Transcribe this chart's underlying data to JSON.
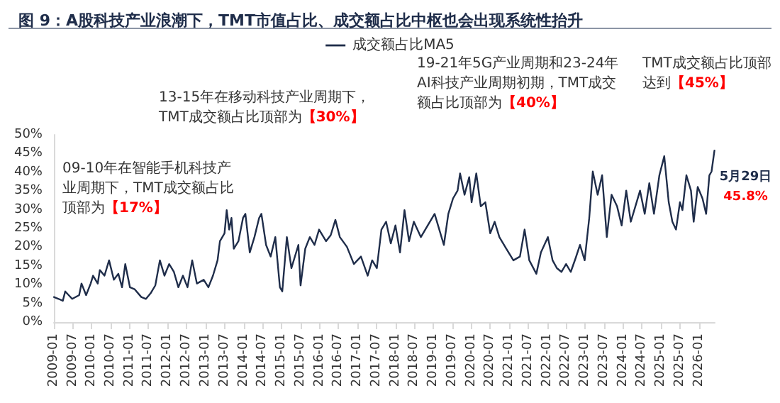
{
  "chart_data": {
    "type": "line",
    "title": "图 9：A股科技产业浪潮下，TMT市值占比、成交额占比中枢也会出现系统性抬升",
    "x": [
      "2009-01-01",
      "2009-02-15",
      "2009-03-28",
      "2009-04-20",
      "2009-06-26",
      "2009-09-01",
      "2009-09-24",
      "2009-11-07",
      "2009-12-21",
      "2010-01-13",
      "2010-02-27",
      "2010-03-19",
      "2010-05-03",
      "2010-06-16",
      "2010-08-01",
      "2010-09-13",
      "2010-10-19",
      "2010-11-19",
      "2011-01-03",
      "2011-02-16",
      "2011-04-22",
      "2011-06-06",
      "2011-07-21",
      "2011-09-04",
      "2011-10-18",
      "2011-12-01",
      "2012-01-15",
      "2012-03-01",
      "2012-04-13",
      "2012-05-27",
      "2012-07-10",
      "2012-08-24",
      "2012-10-08",
      "2012-12-13",
      "2013-01-27",
      "2013-03-12",
      "2013-04-25",
      "2013-05-18",
      "2013-07-01",
      "2013-07-22",
      "2013-08-15",
      "2013-09-06",
      "2013-09-28",
      "2013-11-12",
      "2013-12-26",
      "2014-01-18",
      "2014-03-01",
      "2014-04-15",
      "2014-05-30",
      "2014-06-21",
      "2014-08-05",
      "2014-09-18",
      "2014-11-02",
      "2014-12-16",
      "2015-01-08",
      "2015-02-21",
      "2015-04-06",
      "2015-06-12",
      "2015-07-03",
      "2015-08-17",
      "2015-09-30",
      "2015-11-14",
      "2015-12-28",
      "2016-03-04",
      "2016-04-18",
      "2016-06-02",
      "2016-07-15",
      "2016-09-21",
      "2016-11-27",
      "2017-02-03",
      "2017-04-09",
      "2017-05-22",
      "2017-07-06",
      "2017-08-19",
      "2017-10-03",
      "2017-11-17",
      "2018-01-01",
      "2018-02-14",
      "2018-03-29",
      "2018-05-12",
      "2018-06-27",
      "2018-09-03",
      "2018-11-07",
      "2019-01-13",
      "2019-02-27",
      "2019-04-12",
      "2019-05-25",
      "2019-07-09",
      "2019-08-22",
      "2019-09-15",
      "2019-10-28",
      "2019-12-12",
      "2020-01-04",
      "2020-02-18",
      "2020-04-01",
      "2020-05-15",
      "2020-07-01",
      "2020-08-13",
      "2020-09-27",
      "2020-12-03",
      "2021-02-09",
      "2021-04-13",
      "2021-05-28",
      "2021-07-12",
      "2021-09-18",
      "2021-11-01",
      "2022-01-07",
      "2022-02-21",
      "2022-04-04",
      "2022-05-18",
      "2022-07-01",
      "2022-08-15",
      "2022-09-30",
      "2022-11-12",
      "2022-12-27",
      "2023-02-09",
      "2023-03-15",
      "2023-05-01",
      "2023-06-13",
      "2023-07-28",
      "2023-09-12",
      "2023-11-04",
      "2023-12-18",
      "2024-01-31",
      "2024-03-15",
      "2024-04-28",
      "2024-06-12",
      "2024-07-27",
      "2024-09-09",
      "2024-10-24",
      "2024-12-15",
      "2025-01-31",
      "2025-03-15",
      "2025-04-19",
      "2025-05-24",
      "2025-07-01",
      "2025-07-25",
      "2025-09-01",
      "2025-10-15",
      "2025-11-10",
      "2025-12-19",
      "2026-02-03",
      "2026-03-10",
      "2026-04-10",
      "2026-05-01",
      "2026-05-29"
    ],
    "series": [
      {
        "name": "成交额占比MA5",
        "color": "#1f2d4a",
        "values": [
          6.7,
          6.2,
          5.7,
          8.2,
          6.2,
          7.2,
          10.3,
          7.2,
          10.3,
          12.4,
          10.3,
          13.9,
          12.4,
          16.5,
          11.3,
          12.9,
          9.3,
          15.5,
          9.3,
          8.8,
          6.7,
          6.2,
          7.7,
          9.8,
          16.5,
          12.4,
          15.5,
          13.4,
          9.3,
          12.4,
          9.3,
          16.5,
          10.3,
          11.3,
          9.3,
          12.4,
          16.5,
          21.6,
          23.7,
          29.9,
          24.7,
          27.8,
          19.6,
          21.6,
          27.8,
          28.9,
          18.6,
          22.7,
          27.8,
          28.9,
          20.6,
          17.5,
          22.7,
          9.3,
          8.2,
          22.7,
          14.4,
          20.6,
          9.8,
          19.6,
          22.7,
          20.6,
          24.7,
          21.6,
          23.2,
          27.3,
          22.7,
          20.1,
          15.5,
          17.5,
          12.4,
          16.5,
          14.4,
          24.7,
          26.8,
          21,
          25.8,
          18.6,
          29.9,
          21.6,
          26.8,
          22.7,
          25.8,
          28.9,
          24.7,
          20.6,
          28.9,
          33,
          35.1,
          39.7,
          34,
          38.7,
          32,
          39.7,
          30.9,
          32,
          23.7,
          26.8,
          22.7,
          19.6,
          16.5,
          17.5,
          24.7,
          16.5,
          12.9,
          18.6,
          22.7,
          16.5,
          14.4,
          13.4,
          15.5,
          13.4,
          17,
          20.6,
          16.5,
          27.8,
          40.2,
          34,
          39.2,
          22.7,
          34,
          30.9,
          25.8,
          35.1,
          26.8,
          30.9,
          35.1,
          28.9,
          37.1,
          28.9,
          39.2,
          44.3,
          32,
          26.8,
          24.7,
          32,
          29.9,
          39.2,
          35.1,
          26.8,
          36.1,
          33,
          28.9,
          39.2,
          40.2,
          45.8
        ]
      }
    ],
    "xlim": [
      "2009-01",
      "2026-06"
    ],
    "xticks": [
      "2009-01",
      "2009-07",
      "2010-01",
      "2010-07",
      "2011-01",
      "2011-07",
      "2012-01",
      "2012-07",
      "2013-01",
      "2013-07",
      "2014-01",
      "2014-07",
      "2015-01",
      "2015-07",
      "2016-01",
      "2016-07",
      "2017-01",
      "2017-07",
      "2018-01",
      "2018-07",
      "2019-01",
      "2019-07",
      "2020-01",
      "2020-07",
      "2021-01",
      "2021-07",
      "2022-01",
      "2022-07",
      "2023-01",
      "2023-07",
      "2024-01",
      "2024-07",
      "2025-01",
      "2025-07",
      "2026-01"
    ],
    "ylim": [
      0,
      50
    ],
    "yticks": [
      {
        "value": 0,
        "label": "0%"
      },
      {
        "value": 5,
        "label": "5%"
      },
      {
        "value": 10,
        "label": "10%"
      },
      {
        "value": 15,
        "label": "15%"
      },
      {
        "value": 20,
        "label": "20%"
      },
      {
        "value": 25,
        "label": "25%"
      },
      {
        "value": 30,
        "label": "30%"
      },
      {
        "value": 35,
        "label": "35%"
      },
      {
        "value": 40,
        "label": "40%"
      },
      {
        "value": 45,
        "label": "45%"
      },
      {
        "value": 50,
        "label": "50%"
      }
    ],
    "grid": false,
    "legend": "top",
    "marker": "none",
    "line_style": "solid",
    "annotations": [
      "09-10年在智能手机科技产业周期下，TMT成交额占比顶部为【17%】",
      "13-15年在移动科技产业周期下，TMT成交额占比顶部为【30%】",
      "19-21年5G产业周期和23-24年AI科技产业周期初期，TMT成交额占比顶部为【40%】",
      "TMT成交额占比顶部达到【45%】",
      {
        "text": "5月29日 45.8%",
        "x": "2026-05-29",
        "y": 45.8
      }
    ]
  }
}
